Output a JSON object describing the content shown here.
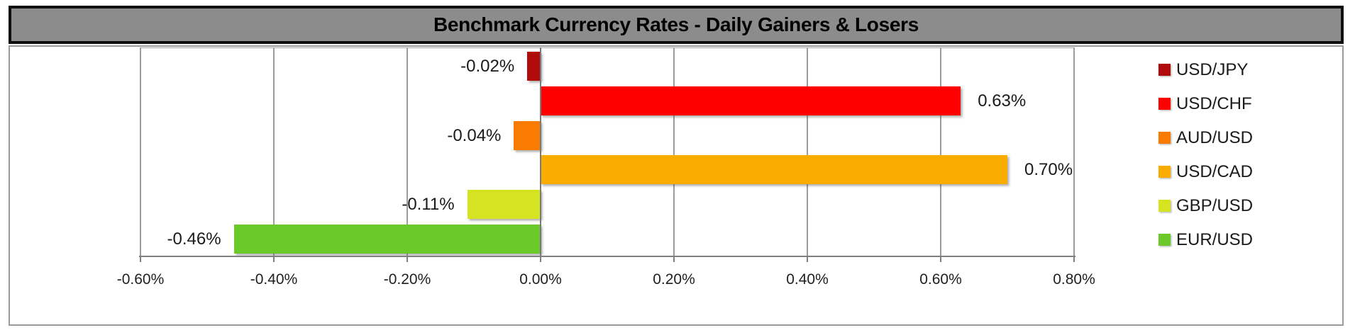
{
  "title": "Benchmark Currency Rates - Daily Gainers & Losers",
  "chart_data": {
    "type": "bar",
    "orientation": "horizontal",
    "title": "Benchmark Currency Rates - Daily Gainers & Losers",
    "series": [
      {
        "name": "USD/JPY",
        "value": -0.02,
        "label": "-0.02%",
        "color": "#B00A0A"
      },
      {
        "name": "USD/CHF",
        "value": 0.63,
        "label": "0.63%",
        "color": "#FE0000"
      },
      {
        "name": "AUD/USD",
        "value": -0.04,
        "label": "-0.04%",
        "color": "#F97C00"
      },
      {
        "name": "USD/CAD",
        "value": 0.7,
        "label": "0.70%",
        "color": "#FBAC00"
      },
      {
        "name": "GBP/USD",
        "value": -0.11,
        "label": "-0.11%",
        "color": "#D6E320"
      },
      {
        "name": "EUR/USD",
        "value": -0.46,
        "label": "-0.46%",
        "color": "#6BC929"
      }
    ],
    "x_axis": {
      "min": -0.6,
      "max": 0.8,
      "step": 0.2,
      "tick_labels": [
        "-0.60%",
        "-0.40%",
        "-0.20%",
        "0.00%",
        "0.20%",
        "0.40%",
        "0.60%",
        "0.80%"
      ],
      "unit": "percent"
    },
    "legend_position": "right",
    "grid": true,
    "data_labels": "outside-end"
  },
  "colors": {
    "title_band": "#8C8C8C",
    "title_text": "#000000",
    "gridline": "#9D9D9D",
    "zero_line": "#7A7A7A",
    "axis_line": "#808080",
    "chart_border": "#9A9A9A",
    "label_text": "#1A1A1A"
  }
}
